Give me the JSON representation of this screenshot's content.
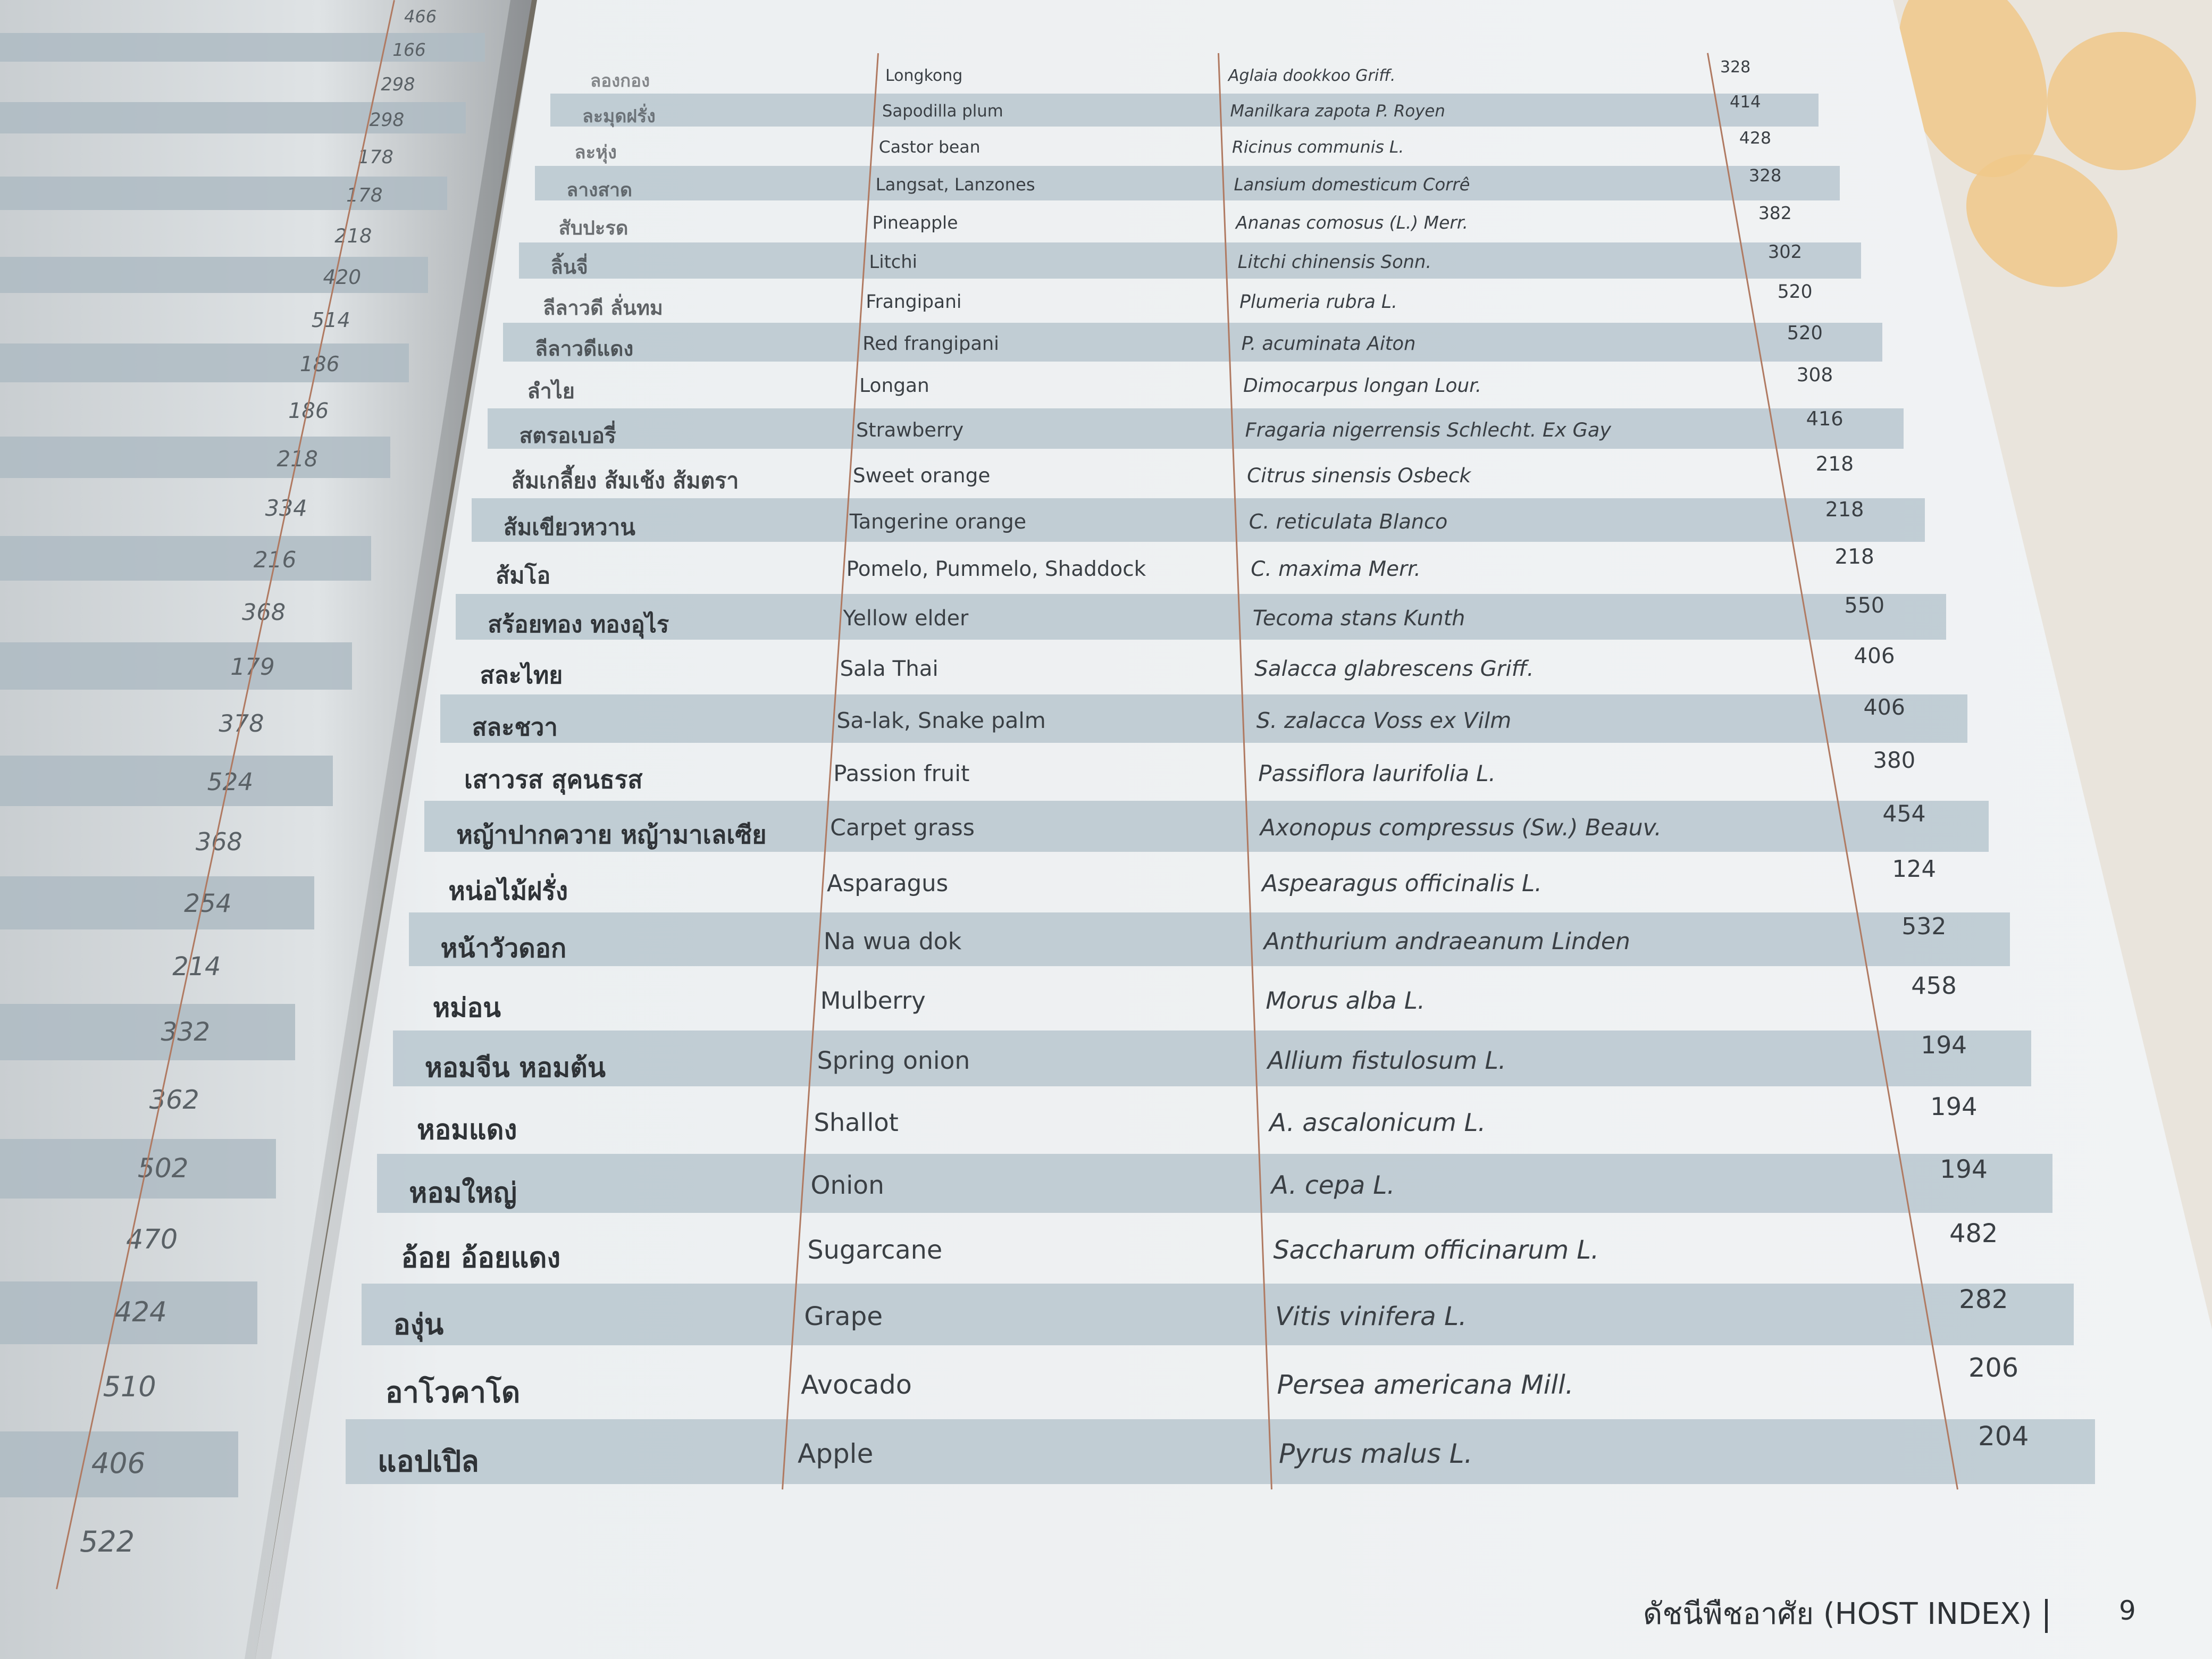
{
  "left_page": {
    "page_refs": [
      "466",
      "166",
      "298",
      "298",
      "178",
      "178",
      "218",
      "420",
      "514",
      "186",
      "186",
      "218",
      "334",
      "216",
      "368",
      "179",
      "378",
      "524",
      "368",
      "254",
      "214",
      "332",
      "362",
      "502",
      "470",
      "424",
      "510",
      "406",
      "522"
    ]
  },
  "host_index": {
    "rows": [
      {
        "thai": "ลองกอง",
        "english": "Longkong",
        "scientific": "Aglaia dookkoo Griff.",
        "page": "328"
      },
      {
        "thai": "ละมุดฝรั่ง",
        "english": "Sapodilla plum",
        "scientific": "Manilkara zapota P. Royen",
        "page": "414"
      },
      {
        "thai": "ละหุ่ง",
        "english": "Castor bean",
        "scientific": "Ricinus communis L.",
        "page": "428"
      },
      {
        "thai": "ลางสาด",
        "english": "Langsat, Lanzones",
        "scientific": "Lansium domesticum Corrê",
        "page": "328"
      },
      {
        "thai": "สับปะรด",
        "english": "Pineapple",
        "scientific": "Ananas comosus (L.) Merr.",
        "page": "382"
      },
      {
        "thai": "ลิ้นจี่",
        "english": "Litchi",
        "scientific": "Litchi chinensis Sonn.",
        "page": "302"
      },
      {
        "thai": "ลีลาวดี ลั่นทม",
        "english": "Frangipani",
        "scientific": "Plumeria rubra L.",
        "page": "520"
      },
      {
        "thai": "ลีลาวดีแดง",
        "english": "Red frangipani",
        "scientific": "P. acuminata Aiton",
        "page": "520"
      },
      {
        "thai": "ลำไย",
        "english": "Longan",
        "scientific": "Dimocarpus longan Lour.",
        "page": "308"
      },
      {
        "thai": "สตรอเบอรี่",
        "english": "Strawberry",
        "scientific": "Fragaria nigerrensis Schlecht. Ex Gay",
        "page": "416"
      },
      {
        "thai": "ส้มเกลี้ยง ส้มเช้ง ส้มตรา",
        "english": "Sweet orange",
        "scientific": "Citrus sinensis Osbeck",
        "page": "218"
      },
      {
        "thai": "ส้มเขียวหวาน",
        "english": "Tangerine orange",
        "scientific": "C. reticulata Blanco",
        "page": "218"
      },
      {
        "thai": "ส้มโอ",
        "english": "Pomelo, Pummelo, Shaddock",
        "scientific": "C. maxima Merr.",
        "page": "218"
      },
      {
        "thai": "สร้อยทอง ทองอุไร",
        "english": "Yellow elder",
        "scientific": "Tecoma stans Kunth",
        "page": "550"
      },
      {
        "thai": "สละไทย",
        "english": "Sala Thai",
        "scientific": "Salacca glabrescens Griff.",
        "page": "406"
      },
      {
        "thai": "สละชวา",
        "english": "Sa-lak, Snake palm",
        "scientific": "S. zalacca Voss ex Vilm",
        "page": "406"
      },
      {
        "thai": "เสาวรส สุคนธรส",
        "english": "Passion fruit",
        "scientific": "Passiflora laurifolia L.",
        "page": "380"
      },
      {
        "thai": "หญ้าปากควาย หญ้ามาเลเซีย",
        "english": "Carpet grass",
        "scientific": "Axonopus compressus (Sw.) Beauv.",
        "page": "454"
      },
      {
        "thai": "หน่อไม้ฝรั่ง",
        "english": "Asparagus",
        "scientific": "Aspearagus officinalis L.",
        "page": "124"
      },
      {
        "thai": "หน้าวัวดอก",
        "english": "Na wua dok",
        "scientific": "Anthurium andraeanum Linden",
        "page": "532"
      },
      {
        "thai": "หม่อน",
        "english": "Mulberry",
        "scientific": "Morus alba L.",
        "page": "458"
      },
      {
        "thai": "หอมจีน หอมต้น",
        "english": "Spring onion",
        "scientific": "Allium fistulosum L.",
        "page": "194"
      },
      {
        "thai": "หอมแดง",
        "english": "Shallot",
        "scientific": "A. ascalonicum L.",
        "page": "194"
      },
      {
        "thai": "หอมใหญ่",
        "english": "Onion",
        "scientific": "A. cepa L.",
        "page": "194"
      },
      {
        "thai": "อ้อย อ้อยแดง",
        "english": "Sugarcane",
        "scientific": "Saccharum officinarum L.",
        "page": "482"
      },
      {
        "thai": "องุ่น",
        "english": "Grape",
        "scientific": "Vitis vinifera L.",
        "page": "282"
      },
      {
        "thai": "อาโวคาโด",
        "english": "Avocado",
        "scientific": "Persea americana Mill.",
        "page": "206"
      },
      {
        "thai": "แอปเปิล",
        "english": "Apple",
        "scientific": "Pyrus malus L.",
        "page": "204"
      }
    ]
  },
  "footer": {
    "title": "ดัชนีพืชอาศัย (HOST INDEX)",
    "page_number": "9"
  },
  "colors": {
    "band": "#b9c7cf",
    "divider": "#b07a62",
    "page": "#f1f3f4"
  }
}
